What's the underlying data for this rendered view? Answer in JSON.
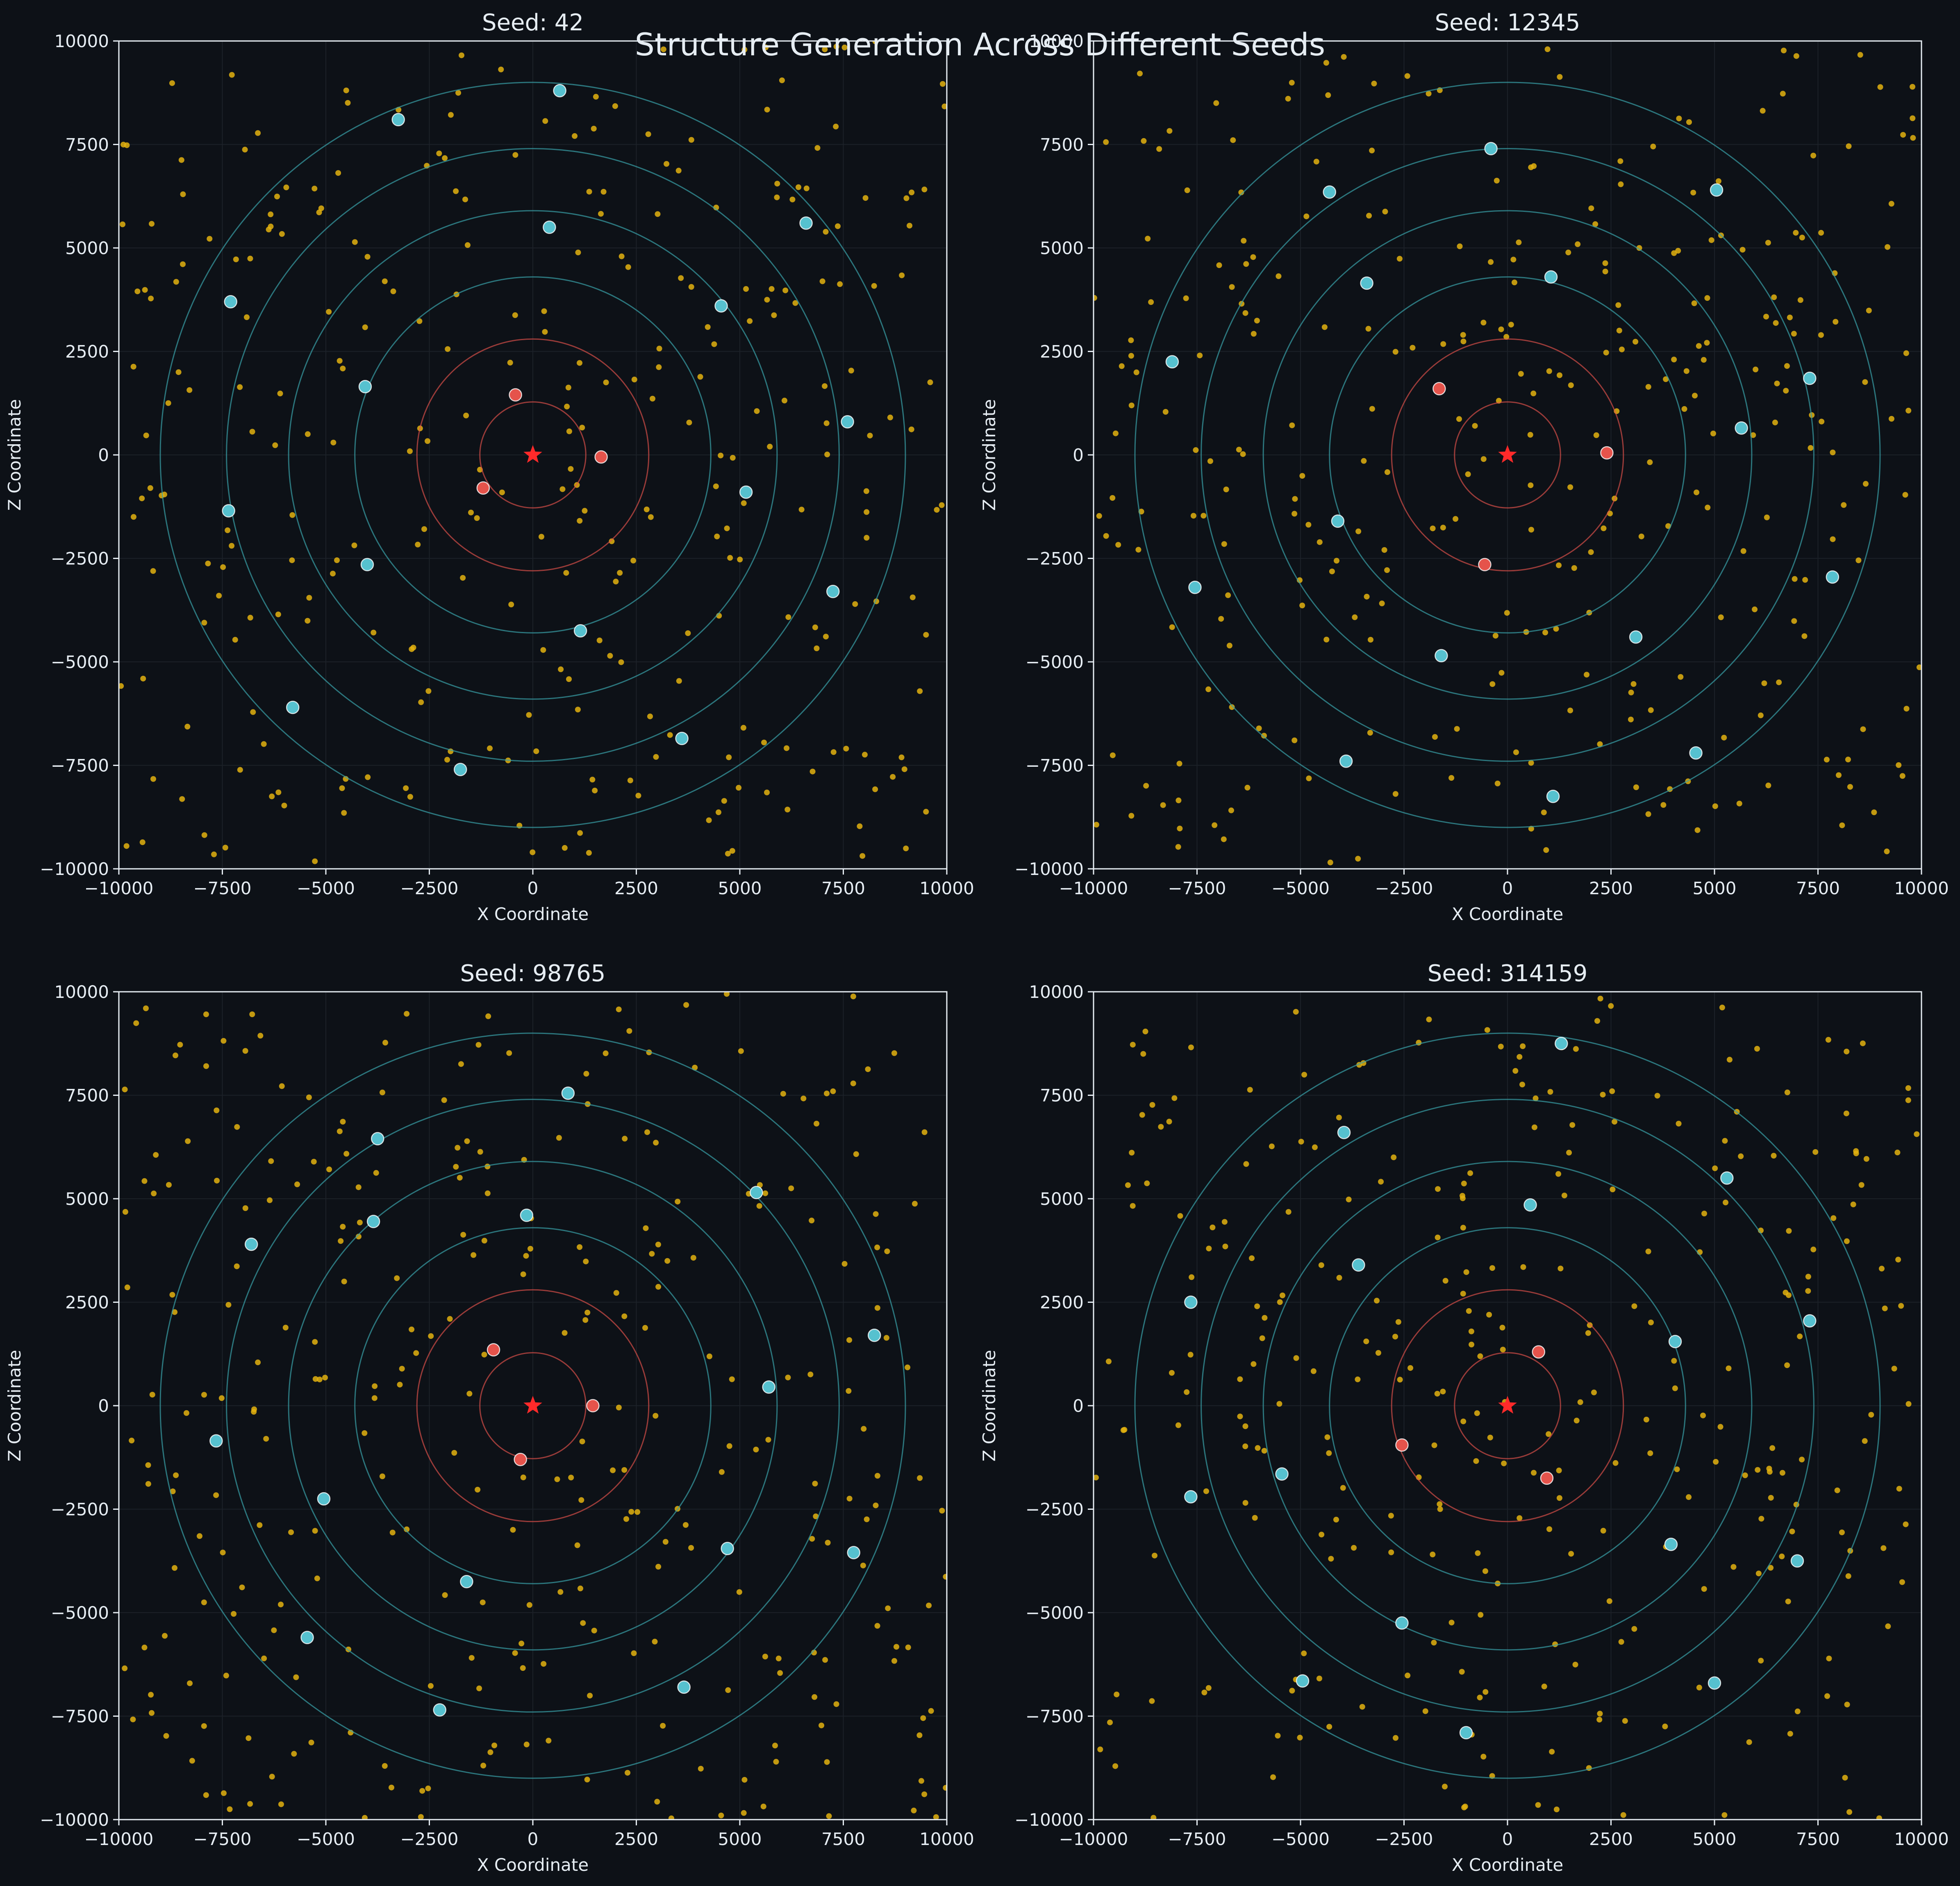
{
  "figure": {
    "title": "Structure Generation Across Different Seeds",
    "background": "#0d1117"
  },
  "colors": {
    "axis_bg": "#0d1117",
    "text": "#e6edf3",
    "spine": "#e6edf3",
    "grid": "#1c2128",
    "inner_ring": "#e5534b",
    "outer_ring": "#39a0a8",
    "origin_star": "#ff2a2a",
    "yellow_point": "#e3b20f",
    "red_point": "#e5534b",
    "cyan_point": "#56c1cf",
    "point_edge": "#ffffff"
  },
  "chart_data": [
    {
      "type": "scatter",
      "title": "Seed: 42",
      "xlabel": "X Coordinate",
      "ylabel": "Z Coordinate",
      "xlim": [
        -10000,
        10000
      ],
      "ylim": [
        -10000,
        10000
      ],
      "xticks": [
        "−10000",
        "−7500",
        "−5000",
        "−2500",
        "0",
        "2500",
        "5000",
        "7500",
        "10000"
      ],
      "yticks": [
        "−10000",
        "−7500",
        "−5000",
        "−2500",
        "0",
        "2500",
        "5000",
        "7500",
        "10000"
      ],
      "rings": {
        "inner": [
          1280,
          2800
        ],
        "outer": [
          4300,
          5900,
          7400,
          9000
        ]
      },
      "origin": [
        0,
        0
      ],
      "red_points": [
        [
          -420,
          1450
        ],
        [
          -1200,
          -800
        ],
        [
          1650,
          -50
        ]
      ],
      "cyan_points": [
        [
          650,
          8800
        ],
        [
          -3250,
          8100
        ],
        [
          400,
          5500
        ],
        [
          6600,
          5600
        ],
        [
          -7300,
          3700
        ],
        [
          4550,
          3600
        ],
        [
          -4050,
          1650
        ],
        [
          7600,
          800
        ],
        [
          5150,
          -900
        ],
        [
          -7350,
          -1350
        ],
        [
          -4000,
          -2650
        ],
        [
          7250,
          -3300
        ],
        [
          1150,
          -4250
        ],
        [
          -5800,
          -6100
        ],
        [
          3600,
          -6850
        ],
        [
          -1750,
          -7600
        ]
      ],
      "yellow_count": 300
    },
    {
      "type": "scatter",
      "title": "Seed: 12345",
      "xlabel": "X Coordinate",
      "ylabel": "Z Coordinate",
      "xlim": [
        -10000,
        10000
      ],
      "ylim": [
        -10000,
        10000
      ],
      "xticks": [
        "−10000",
        "−7500",
        "−5000",
        "−2500",
        "0",
        "2500",
        "5000",
        "7500",
        "10000"
      ],
      "yticks": [
        "−10000",
        "−7500",
        "−5000",
        "−2500",
        "0",
        "2500",
        "5000",
        "7500",
        "10000"
      ],
      "rings": {
        "inner": [
          1280,
          2800
        ],
        "outer": [
          4300,
          5900,
          7400,
          9000
        ]
      },
      "origin": [
        0,
        0
      ],
      "red_points": [
        [
          -1650,
          1600
        ],
        [
          2400,
          50
        ],
        [
          -550,
          -2650
        ]
      ],
      "cyan_points": [
        [
          -400,
          7400
        ],
        [
          -4300,
          6350
        ],
        [
          5050,
          6400
        ],
        [
          -3400,
          4150
        ],
        [
          1050,
          4300
        ],
        [
          -8100,
          2250
        ],
        [
          7300,
          1850
        ],
        [
          5650,
          650
        ],
        [
          -4100,
          -1600
        ],
        [
          -7550,
          -3200
        ],
        [
          7850,
          -2950
        ],
        [
          -1600,
          -4850
        ],
        [
          3100,
          -4400
        ],
        [
          -3900,
          -7400
        ],
        [
          4550,
          -7200
        ],
        [
          1100,
          -8250
        ]
      ],
      "yellow_count": 300
    },
    {
      "type": "scatter",
      "title": "Seed: 98765",
      "xlabel": "X Coordinate",
      "ylabel": "Z Coordinate",
      "xlim": [
        -10000,
        10000
      ],
      "ylim": [
        -10000,
        10000
      ],
      "xticks": [
        "−10000",
        "−7500",
        "−5000",
        "−2500",
        "0",
        "2500",
        "5000",
        "7500",
        "10000"
      ],
      "yticks": [
        "−10000",
        "−7500",
        "−5000",
        "−2500",
        "0",
        "2500",
        "5000",
        "7500",
        "10000"
      ],
      "rings": {
        "inner": [
          1280,
          2800
        ],
        "outer": [
          4300,
          5900,
          7400,
          9000
        ]
      },
      "origin": [
        0,
        0
      ],
      "red_points": [
        [
          -950,
          1350
        ],
        [
          1450,
          0
        ],
        [
          -300,
          -1300
        ]
      ],
      "cyan_points": [
        [
          850,
          7550
        ],
        [
          -3750,
          6450
        ],
        [
          -150,
          4600
        ],
        [
          5400,
          5150
        ],
        [
          -6800,
          3900
        ],
        [
          -3850,
          4450
        ],
        [
          8250,
          1700
        ],
        [
          5700,
          450
        ],
        [
          -7650,
          -850
        ],
        [
          -5050,
          -2250
        ],
        [
          4700,
          -3450
        ],
        [
          7750,
          -3550
        ],
        [
          -1600,
          -4250
        ],
        [
          -5450,
          -5600
        ],
        [
          3650,
          -6800
        ],
        [
          -2250,
          -7350
        ]
      ],
      "yellow_count": 300
    },
    {
      "type": "scatter",
      "title": "Seed: 314159",
      "xlabel": "X Coordinate",
      "ylabel": "Z Coordinate",
      "xlim": [
        -10000,
        10000
      ],
      "ylim": [
        -10000,
        10000
      ],
      "xticks": [
        "−10000",
        "−7500",
        "−5000",
        "−2500",
        "0",
        "2500",
        "5000",
        "7500",
        "10000"
      ],
      "yticks": [
        "−10000",
        "−7500",
        "−5000",
        "−2500",
        "0",
        "2500",
        "5000",
        "7500",
        "10000"
      ],
      "rings": {
        "inner": [
          1280,
          2800
        ],
        "outer": [
          4300,
          5900,
          7400,
          9000
        ]
      },
      "origin": [
        0,
        0
      ],
      "red_points": [
        [
          750,
          1300
        ],
        [
          -2550,
          -950
        ],
        [
          950,
          -1750
        ]
      ],
      "cyan_points": [
        [
          1300,
          8750
        ],
        [
          -3950,
          6600
        ],
        [
          5300,
          5500
        ],
        [
          550,
          4850
        ],
        [
          -3600,
          3400
        ],
        [
          -7650,
          2500
        ],
        [
          4050,
          1550
        ],
        [
          7300,
          2050
        ],
        [
          -5450,
          -1650
        ],
        [
          -7650,
          -2200
        ],
        [
          3950,
          -3350
        ],
        [
          7000,
          -3750
        ],
        [
          -2550,
          -5250
        ],
        [
          -4950,
          -6650
        ],
        [
          5000,
          -6700
        ],
        [
          -1000,
          -7900
        ]
      ],
      "yellow_count": 300
    }
  ]
}
